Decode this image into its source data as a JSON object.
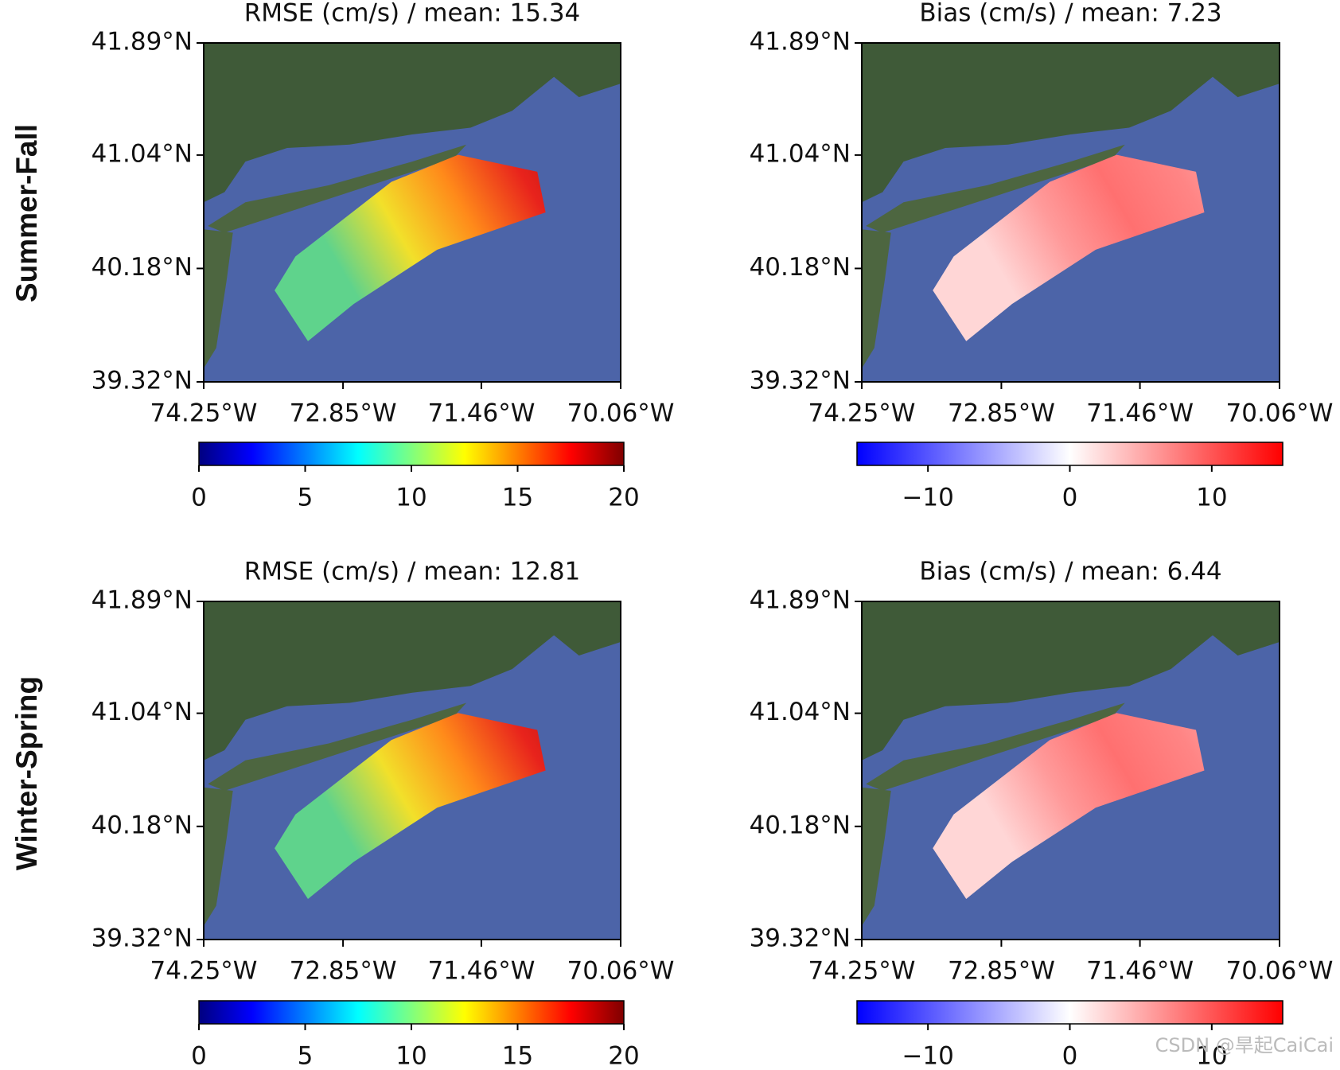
{
  "figure": {
    "row_labels": [
      "Summer-Fall",
      "Winter-Spring"
    ],
    "watermark": "CSDN @旱起CaiCai"
  },
  "chart_data": [
    {
      "type": "map",
      "title": "RMSE (cm/s) / mean: 15.34",
      "colormap": "jet",
      "xlim": [
        -74.25,
        -70.06
      ],
      "ylim": [
        39.32,
        41.89
      ],
      "xticks": [
        {
          "value": -74.25,
          "label": "74.25°W"
        },
        {
          "value": -72.85,
          "label": "72.85°W"
        },
        {
          "value": -71.46,
          "label": "71.46°W"
        },
        {
          "value": -70.06,
          "label": "70.06°W"
        }
      ],
      "yticks": [
        {
          "value": 39.32,
          "label": "39.32°N"
        },
        {
          "value": 40.18,
          "label": "40.18°N"
        },
        {
          "value": 41.04,
          "label": "41.04°N"
        },
        {
          "value": 41.89,
          "label": "41.89°N"
        }
      ],
      "clim": [
        0,
        20
      ],
      "cticks": [
        0,
        5,
        10,
        15,
        20
      ]
    },
    {
      "type": "map",
      "title": "Bias (cm/s) / mean: 7.23",
      "colormap": "bwr",
      "xlim": [
        -74.25,
        -70.06
      ],
      "ylim": [
        39.32,
        41.89
      ],
      "xticks": [
        {
          "value": -74.25,
          "label": "74.25°W"
        },
        {
          "value": -72.85,
          "label": "72.85°W"
        },
        {
          "value": -71.46,
          "label": "71.46°W"
        },
        {
          "value": -70.06,
          "label": "70.06°W"
        }
      ],
      "yticks": [
        {
          "value": 39.32,
          "label": "39.32°N"
        },
        {
          "value": 40.18,
          "label": "40.18°N"
        },
        {
          "value": 41.04,
          "label": "41.04°N"
        },
        {
          "value": 41.89,
          "label": "41.89°N"
        }
      ],
      "clim": [
        -15,
        15
      ],
      "cticks": [
        {
          "value": -10,
          "label": "−10"
        },
        0,
        10
      ]
    },
    {
      "type": "map",
      "title": "RMSE (cm/s) / mean: 12.81",
      "colormap": "jet",
      "xlim": [
        -74.25,
        -70.06
      ],
      "ylim": [
        39.32,
        41.89
      ],
      "xticks": [
        {
          "value": -74.25,
          "label": "74.25°W"
        },
        {
          "value": -72.85,
          "label": "72.85°W"
        },
        {
          "value": -71.46,
          "label": "71.46°W"
        },
        {
          "value": -70.06,
          "label": "70.06°W"
        }
      ],
      "yticks": [
        {
          "value": 39.32,
          "label": "39.32°N"
        },
        {
          "value": 40.18,
          "label": "40.18°N"
        },
        {
          "value": 41.04,
          "label": "41.04°N"
        },
        {
          "value": 41.89,
          "label": "41.89°N"
        }
      ],
      "clim": [
        0,
        20
      ],
      "cticks": [
        0,
        5,
        10,
        15,
        20
      ]
    },
    {
      "type": "map",
      "title": "Bias (cm/s) / mean: 6.44",
      "colormap": "bwr",
      "xlim": [
        -74.25,
        -70.06
      ],
      "ylim": [
        39.32,
        41.89
      ],
      "xticks": [
        {
          "value": -74.25,
          "label": "74.25°W"
        },
        {
          "value": -72.85,
          "label": "72.85°W"
        },
        {
          "value": -71.46,
          "label": "71.46°W"
        },
        {
          "value": -70.06,
          "label": "70.06°W"
        }
      ],
      "yticks": [
        {
          "value": 39.32,
          "label": "39.32°N"
        },
        {
          "value": 40.18,
          "label": "40.18°N"
        },
        {
          "value": 41.04,
          "label": "41.04°N"
        },
        {
          "value": 41.89,
          "label": "41.89°N"
        }
      ],
      "clim": [
        -15,
        15
      ],
      "cticks": [
        {
          "value": -10,
          "label": "−10"
        },
        0,
        10
      ]
    }
  ]
}
